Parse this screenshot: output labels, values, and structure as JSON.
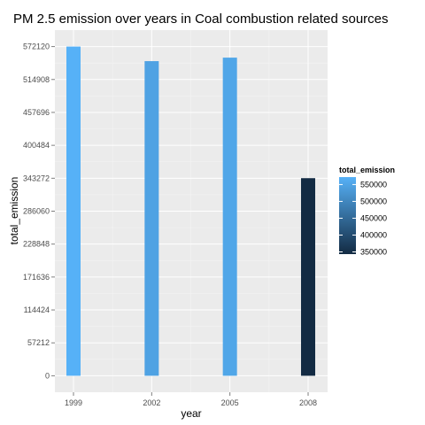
{
  "chart_data": {
    "type": "bar",
    "title": "PM 2.5 emission over years in Coal combustion related sources",
    "xlabel": "year",
    "ylabel": "total_emission",
    "categories": [
      "1999",
      "2002",
      "2005",
      "2008"
    ],
    "values": [
      572126,
      546789,
      552881,
      343432
    ],
    "ylim": [
      0,
      600000
    ],
    "yticks": [
      0,
      57212,
      114424,
      171636,
      228848,
      286060,
      343272,
      400484,
      457696,
      514908,
      572120
    ],
    "grid": true,
    "legend": {
      "title": "total_emission",
      "position": "right",
      "ticks": [
        550000,
        500000,
        450000,
        400000,
        350000
      ],
      "range": [
        343432,
        572126
      ],
      "low_color": "#132B43",
      "high_color": "#56B1F7"
    },
    "panel_background": "#ebebeb"
  }
}
